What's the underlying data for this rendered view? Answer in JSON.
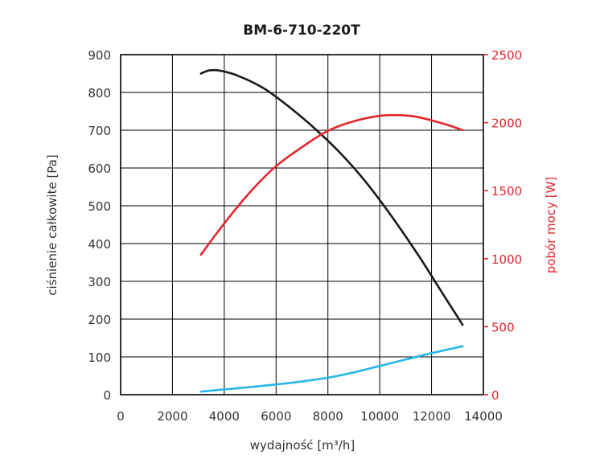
{
  "chart_data": {
    "type": "line",
    "title": "BM-6-710-220T",
    "xlabel": "wydajność [m³/h]",
    "ylabel": "ciśnienie całkowite [Pa]",
    "y2label": "pobór mocy [W]",
    "xlim": [
      0,
      14000
    ],
    "ylim": [
      0,
      900
    ],
    "y2lim": [
      0,
      2500
    ],
    "x_ticks": [
      0,
      2000,
      4000,
      6000,
      8000,
      10000,
      12000,
      14000
    ],
    "y_ticks": [
      0,
      100,
      200,
      300,
      400,
      500,
      600,
      700,
      800,
      900
    ],
    "y2_ticks": [
      0,
      500,
      1000,
      1500,
      2000,
      2500
    ],
    "grid": true,
    "series_colors": {
      "pressure": "#1a1a1a",
      "power": "#e3262e",
      "dynamic": "#29b6e6"
    },
    "right_axis_color": "#e3262e",
    "series": [
      {
        "key": "pressure",
        "axis": "left",
        "x": [
          3100,
          3400,
          3800,
          4500,
          5500,
          6500,
          7500,
          8500,
          9500,
          10500,
          11500,
          12500,
          13200
        ],
        "y": [
          850,
          858,
          858,
          845,
          812,
          762,
          704,
          638,
          560,
          468,
          368,
          260,
          185
        ]
      },
      {
        "key": "power",
        "axis": "right",
        "x": [
          3100,
          4000,
          5000,
          6000,
          7000,
          8000,
          9000,
          10000,
          10800,
          11500,
          12500,
          13200
        ],
        "y": [
          1030,
          1260,
          1490,
          1680,
          1820,
          1940,
          2010,
          2050,
          2055,
          2040,
          1990,
          1945
        ]
      },
      {
        "key": "dynamic",
        "axis": "left",
        "x": [
          3100,
          4000,
          5000,
          6000,
          7000,
          8000,
          9000,
          10000,
          11000,
          12000,
          13200
        ],
        "y": [
          8,
          14,
          20,
          27,
          35,
          45,
          59,
          76,
          93,
          110,
          128
        ]
      }
    ]
  }
}
